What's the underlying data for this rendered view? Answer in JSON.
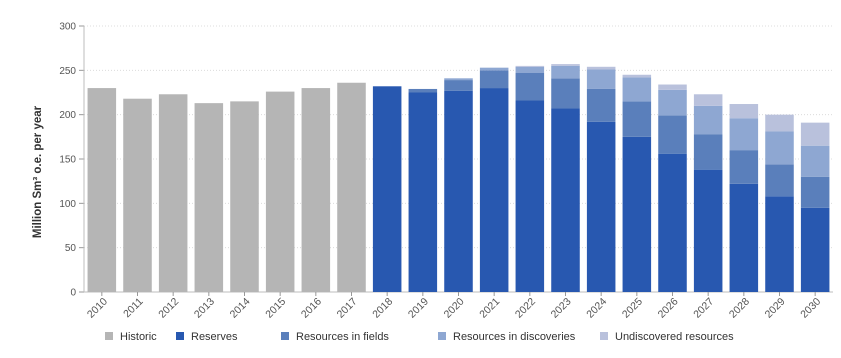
{
  "chart_data": {
    "type": "bar",
    "stacked": true,
    "ylabel": "Million Sm³ o.e. per year",
    "xlabel": "",
    "ylim": [
      0,
      300
    ],
    "yticks": [
      0,
      50,
      100,
      150,
      200,
      250,
      300
    ],
    "grid": true,
    "legend_position": "bottom",
    "categories": [
      "2010",
      "2011",
      "2012",
      "2013",
      "2014",
      "2015",
      "2016",
      "2017",
      "2018",
      "2019",
      "2020",
      "2021",
      "2022",
      "2023",
      "2024",
      "2025",
      "2026",
      "2027",
      "2028",
      "2029",
      "2030"
    ],
    "series": [
      {
        "name": "Historic",
        "color": "#b5b5b5",
        "values": [
          230,
          218,
          223,
          213,
          215,
          226,
          230,
          236,
          0,
          0,
          0,
          0,
          0,
          0,
          0,
          0,
          0,
          0,
          0,
          0,
          0
        ]
      },
      {
        "name": "Reserves",
        "color": "#2858b0",
        "values": [
          0,
          0,
          0,
          0,
          0,
          0,
          0,
          0,
          232,
          225,
          227,
          230,
          216,
          207,
          192,
          175,
          156,
          138,
          122,
          108,
          95
        ]
      },
      {
        "name": "Resources in fields",
        "color": "#5a7fbb",
        "values": [
          0,
          0,
          0,
          0,
          0,
          0,
          0,
          0,
          0,
          4,
          12,
          20,
          31,
          34,
          37,
          40,
          43,
          40,
          38,
          36,
          35
        ]
      },
      {
        "name": "Resources in discoveries",
        "color": "#8ea7d2",
        "values": [
          0,
          0,
          0,
          0,
          0,
          0,
          0,
          0,
          0,
          0,
          2,
          3,
          7,
          14,
          22,
          27,
          29,
          32,
          36,
          37,
          35
        ]
      },
      {
        "name": "Undiscovered resources",
        "color": "#b9c1dc",
        "values": [
          0,
          0,
          0,
          0,
          0,
          0,
          0,
          0,
          0,
          0,
          0,
          0,
          1,
          2,
          3,
          3,
          6,
          13,
          16,
          19,
          26
        ]
      }
    ]
  }
}
